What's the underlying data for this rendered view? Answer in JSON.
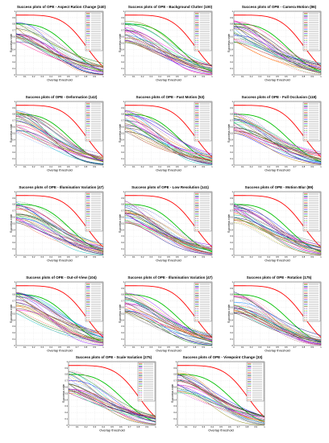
{
  "colors": [
    "#ff0000",
    "#00c000",
    "#0000ff",
    "#000000",
    "#ff00ff",
    "#00c0c0",
    "#808080",
    "#ff8000",
    "#800080",
    "#008000",
    "#000080",
    "#c08000",
    "#ff0080",
    "#0080ff",
    "#404040",
    "#808000",
    "#8000ff",
    "#00ff80",
    "#804000",
    "#ff8080",
    "#4040c0",
    "#c0c000",
    "#008080",
    "#c000c0",
    "#60a0ff",
    "#a05050",
    "#ff60a0",
    "#50a050",
    "#a0a0a0",
    "#ff4000",
    "#0040ff"
  ],
  "chart_data": [
    {
      "type": "line",
      "title": "Success plots of OPE - Aspect Ration Change (240)",
      "xlabel": "Overlap threshold",
      "ylabel": "Success rate",
      "xlim": [
        0,
        1
      ],
      "ylim": [
        0,
        1
      ],
      "legend": "top-right"
    },
    {
      "type": "line",
      "title": "Success plots of OPE - Background Clutter (100)",
      "xlabel": "Overlap threshold",
      "ylabel": "Success rate",
      "xlim": [
        0,
        1
      ],
      "ylim": [
        0,
        1
      ],
      "legend": "top-right"
    },
    {
      "type": "line",
      "title": "Success plots of OPE - Camera Motion (86)",
      "xlabel": "Overlap threshold",
      "ylabel": "Success rate",
      "xlim": [
        0,
        1
      ],
      "ylim": [
        0,
        1
      ],
      "legend": "top-right"
    },
    {
      "type": "line",
      "title": "Success plots of OPE - Deformation (142)",
      "xlabel": "Overlap threshold",
      "ylabel": "Success rate",
      "xlim": [
        0,
        1
      ],
      "ylim": [
        0,
        1
      ],
      "legend": "top-right"
    },
    {
      "type": "line",
      "title": "Success plots of OPE - Fast Motion (53)",
      "xlabel": "Overlap threshold",
      "ylabel": "Success rate",
      "xlim": [
        0,
        1
      ],
      "ylim": [
        0,
        1
      ],
      "legend": "top-right"
    },
    {
      "type": "line",
      "title": "Success plots of OPE - Full Occlusion (118)",
      "xlabel": "Overlap threshold",
      "ylabel": "Success rate",
      "xlim": [
        0,
        1
      ],
      "ylim": [
        0,
        1
      ],
      "legend": "top-right"
    },
    {
      "type": "line",
      "title": "Success plots of OPE - Illumination Variation (47)",
      "xlabel": "Overlap threshold",
      "ylabel": "Success rate",
      "xlim": [
        0,
        1
      ],
      "ylim": [
        0,
        1
      ],
      "legend": "top-right"
    },
    {
      "type": "line",
      "title": "Success plots of OPE - Low Resolution (141)",
      "xlabel": "Overlap threshold",
      "ylabel": "Success rate",
      "xlim": [
        0,
        1
      ],
      "ylim": [
        0,
        1
      ],
      "legend": "top-right"
    },
    {
      "type": "line",
      "title": "Success plots of OPE - Motion Blur (89)",
      "xlabel": "Overlap threshold",
      "ylabel": "Success rate",
      "xlim": [
        0,
        1
      ],
      "ylim": [
        0,
        1
      ],
      "legend": "top-right"
    },
    {
      "type": "line",
      "title": "Success plots of OPE - Out-of-View (104)",
      "xlabel": "Overlap threshold",
      "ylabel": "Success rate",
      "xlim": [
        0,
        1
      ],
      "ylim": [
        0,
        1
      ],
      "legend": "top-right"
    },
    {
      "type": "line",
      "title": "Success plots of OPE - Illumination Variation (47)",
      "xlabel": "Overlap threshold",
      "ylabel": "Success rate",
      "xlim": [
        0,
        1
      ],
      "ylim": [
        0,
        1
      ],
      "legend": "top-right"
    },
    {
      "type": "line",
      "title": "Success plots of OPE - Rotation (175)",
      "xlabel": "Overlap threshold",
      "ylabel": "Success rate",
      "xlim": [
        0,
        1
      ],
      "ylim": [
        0,
        1
      ],
      "legend": "top-right"
    },
    {
      "type": "line",
      "title": "Success plots of OPE - Scale Variation (275)",
      "xlabel": "Overlap threshold",
      "ylabel": "Success rate",
      "xlim": [
        0,
        1
      ],
      "ylim": [
        0,
        1
      ],
      "legend": "top-right"
    },
    {
      "type": "line",
      "title": "Success plots of OPE - Viewpoint Change (33)",
      "xlabel": "Overlap threshold",
      "ylabel": "Success rate",
      "xlim": [
        0,
        1
      ],
      "ylim": [
        0,
        1
      ],
      "legend": "top-right"
    }
  ]
}
